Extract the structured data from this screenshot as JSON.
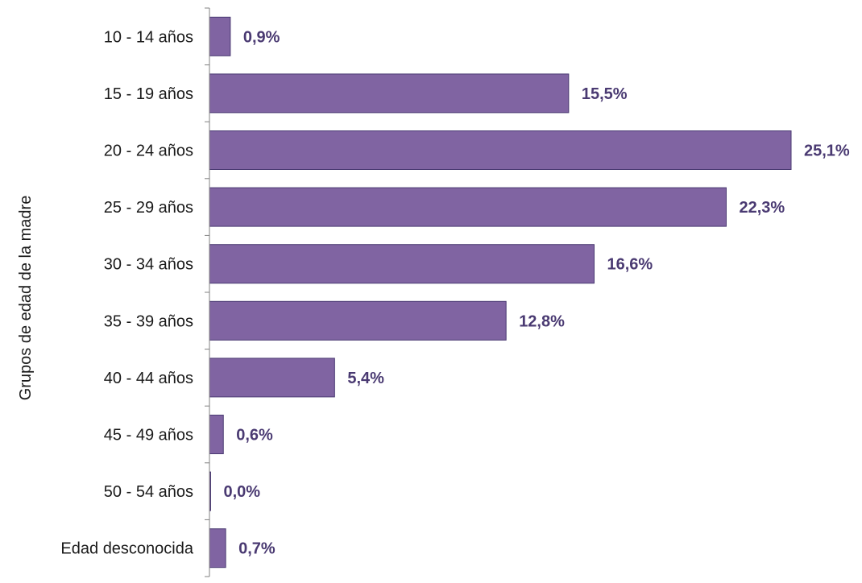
{
  "chart_data": {
    "type": "bar",
    "orientation": "horizontal",
    "title": "",
    "xlabel": "",
    "ylabel": "Grupos de edad de la madre",
    "categories": [
      "10 - 14 años",
      "15 - 19 años",
      "20 - 24 años",
      "25 - 29 años",
      "30 - 34 años",
      "35 - 39 años",
      "40 - 44 años",
      "45 - 49 años",
      "50 - 54 años",
      "Edad desconocida"
    ],
    "values": [
      0.9,
      15.5,
      25.1,
      22.3,
      16.6,
      12.8,
      5.4,
      0.6,
      0.0,
      0.7
    ],
    "value_labels": [
      "0,9%",
      "15,5%",
      "25,1%",
      "22,3%",
      "16,6%",
      "12,8%",
      "5,4%",
      "0,6%",
      "0,0%",
      "0,7%"
    ],
    "xlim": [
      0,
      25.1
    ],
    "grid": false,
    "legend": "none",
    "colors": {
      "bar_fill": "#8064a2",
      "bar_stroke": "#4a3a72",
      "value_label": "#4a3a72"
    }
  }
}
